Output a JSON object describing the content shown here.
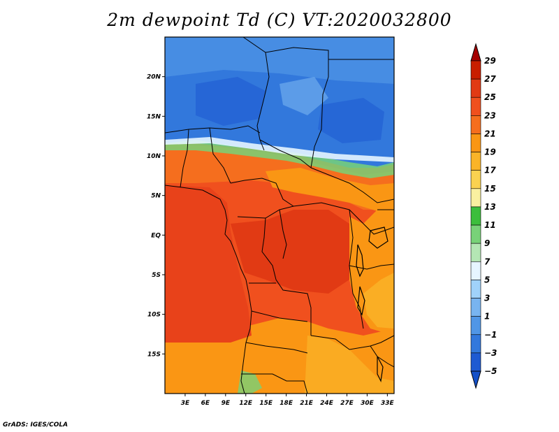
{
  "title": "2m dewpoint Td (C) VT:2020032800",
  "credit": "GrADS: IGES/COLA",
  "map": {
    "lon_range": [
      0,
      34
    ],
    "lat_range": [
      -20,
      25
    ],
    "lat_ticks": [
      {
        "value": 20,
        "label": "20N"
      },
      {
        "value": 15,
        "label": "15N"
      },
      {
        "value": 10,
        "label": "10N"
      },
      {
        "value": 5,
        "label": "5N"
      },
      {
        "value": 0,
        "label": "EQ"
      },
      {
        "value": -5,
        "label": "5S"
      },
      {
        "value": -10,
        "label": "10S"
      },
      {
        "value": -15,
        "label": "15S"
      }
    ],
    "lon_ticks": [
      {
        "value": 3,
        "label": "3E"
      },
      {
        "value": 6,
        "label": "6E"
      },
      {
        "value": 9,
        "label": "9E"
      },
      {
        "value": 12,
        "label": "12E"
      },
      {
        "value": 15,
        "label": "15E"
      },
      {
        "value": 18,
        "label": "18E"
      },
      {
        "value": 21,
        "label": "21E"
      },
      {
        "value": 24,
        "label": "24E"
      },
      {
        "value": 27,
        "label": "27E"
      },
      {
        "value": 30,
        "label": "30E"
      },
      {
        "value": 33,
        "label": "33E"
      }
    ]
  },
  "colorbar": {
    "labels": [
      "29",
      "27",
      "25",
      "23",
      "21",
      "19",
      "17",
      "15",
      "13",
      "11",
      "9",
      "7",
      "5",
      "3",
      "1",
      "−1",
      "−3",
      "−5"
    ],
    "colors": [
      "#a50000",
      "#c81e00",
      "#e13a14",
      "#f0501e",
      "#f56e1e",
      "#fa9614",
      "#fab428",
      "#fad250",
      "#faf0a0",
      "#3cbe3c",
      "#78d278",
      "#b4e6b4",
      "#e6f5ff",
      "#a0d2fa",
      "#78b4f0",
      "#5096e6",
      "#3278dc",
      "#1e5ad2",
      "#1450c8"
    ]
  },
  "colors": {
    "ocean_warm": "#e8421a",
    "desert_blue": "#2b78dc"
  }
}
